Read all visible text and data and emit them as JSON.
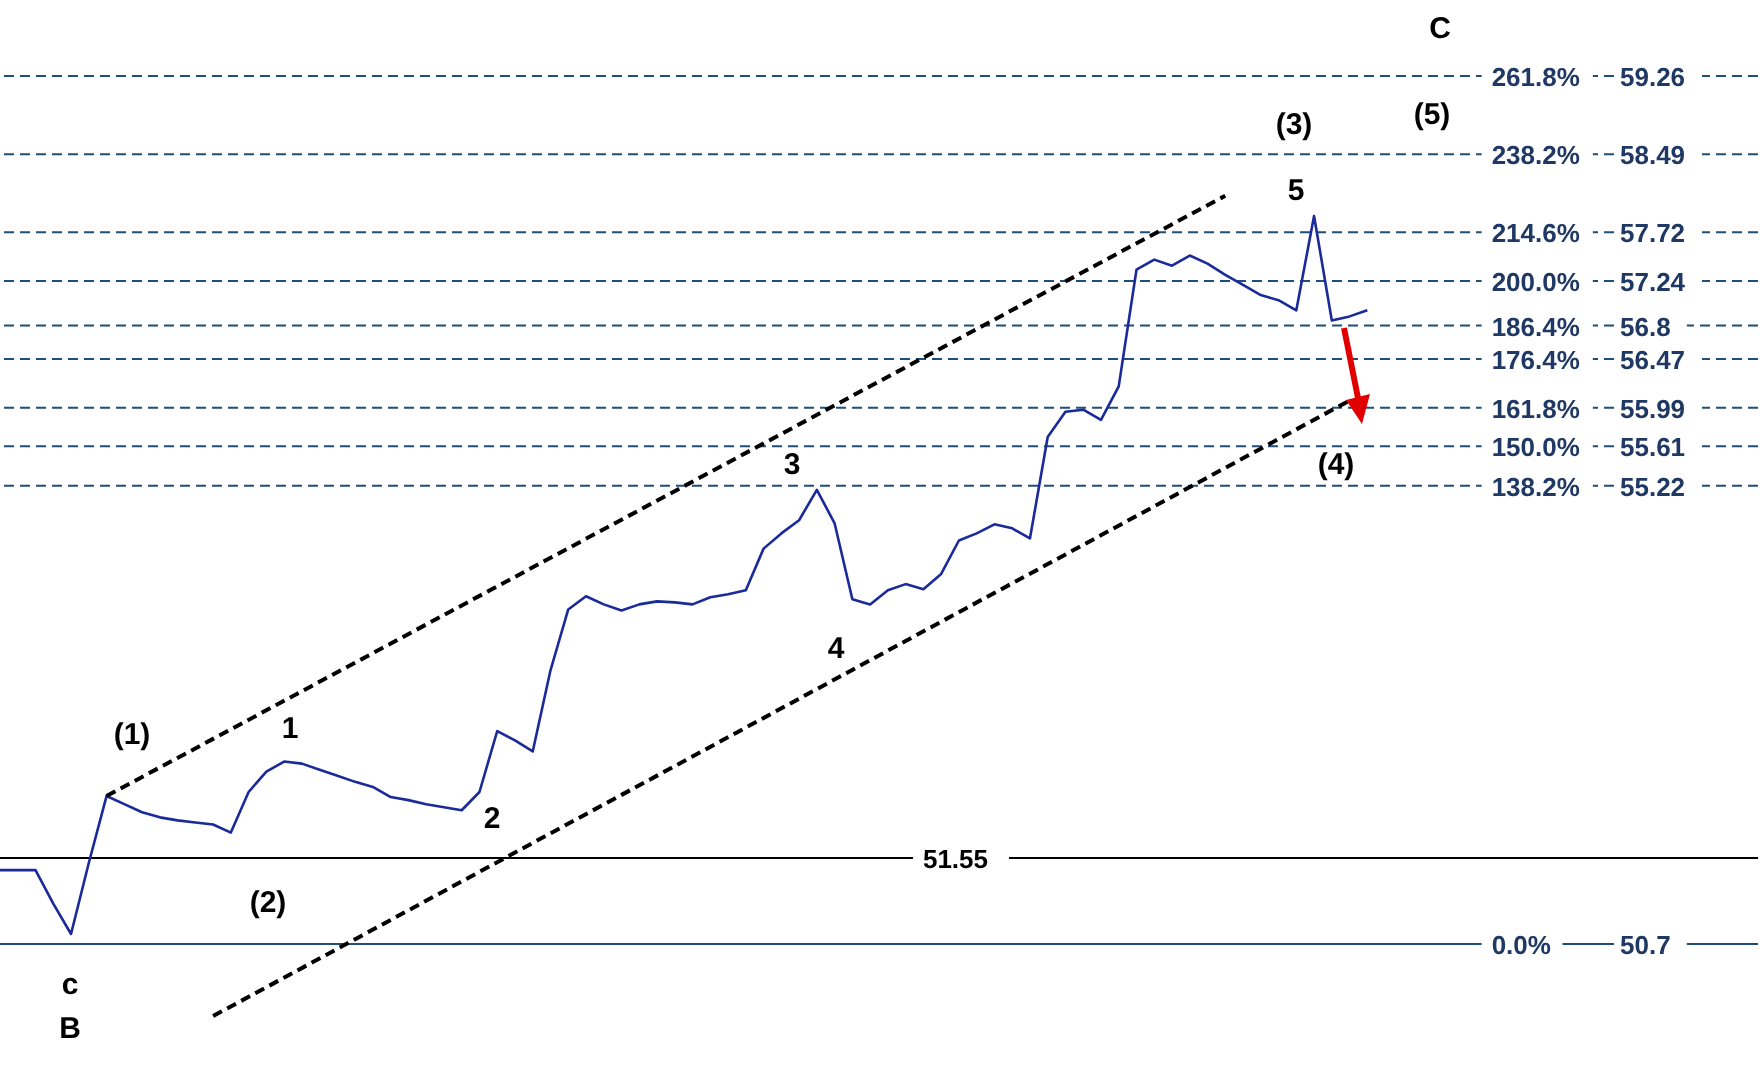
{
  "chart_data": {
    "type": "line",
    "ylim": [
      49.36,
      60.01
    ],
    "tick_labels": "y",
    "marker": "none",
    "categories": [
      null,
      null,
      null,
      null,
      null,
      null,
      null,
      null,
      null,
      null,
      null,
      null,
      null,
      null,
      null,
      null,
      null,
      null,
      null,
      null,
      null,
      null,
      null,
      null,
      null,
      null,
      null,
      null,
      null,
      null,
      null,
      null,
      null,
      null,
      null,
      null,
      null,
      null,
      null,
      null,
      null,
      null,
      null,
      null,
      null,
      null,
      null,
      null,
      null,
      null,
      null,
      null,
      null,
      null,
      null,
      null,
      null,
      null,
      null,
      null,
      null,
      null,
      null,
      null,
      null,
      null,
      null,
      null,
      null,
      null,
      null,
      null,
      null,
      null,
      null,
      null,
      null,
      null,
      null,
      null,
      null,
      null,
      null,
      null,
      null,
      null,
      null,
      null,
      null,
      null,
      null,
      null,
      null,
      null,
      null,
      null,
      null,
      null,
      null,
      null
    ],
    "yticks": [
      59.26,
      58.49,
      57.72,
      57.24,
      56.8,
      56.47,
      55.99,
      55.61,
      55.22,
      50.7
    ],
    "series": [
      {
        "color": "#1a2a9a",
        "values": [
          51.43,
          51.43,
          51.43,
          51.1,
          50.8,
          51.5,
          52.16,
          52.08,
          52.0,
          51.95,
          51.92,
          51.9,
          51.88,
          51.8,
          52.2,
          52.4,
          52.5,
          52.48,
          52.42,
          52.36,
          52.3,
          52.25,
          52.15,
          52.12,
          52.08,
          52.05,
          52.02,
          52.2,
          52.8,
          52.71,
          52.6,
          53.4,
          54.0,
          54.13,
          54.05,
          53.99,
          54.05,
          54.08,
          54.07,
          54.05,
          54.12,
          54.15,
          54.19,
          54.6,
          54.75,
          54.88,
          55.18,
          54.85,
          54.1,
          54.05,
          54.19,
          54.25,
          54.2,
          54.35,
          54.68,
          54.75,
          54.84,
          54.8,
          54.7,
          55.7,
          55.95,
          55.97,
          55.87,
          56.2,
          57.35,
          57.45,
          57.39,
          57.49,
          57.41,
          57.3,
          57.2,
          57.1,
          57.05,
          56.95,
          57.88,
          56.85,
          56.89,
          56.95,
          null,
          null,
          null,
          null,
          null,
          null,
          null,
          null,
          null,
          null,
          null,
          null,
          null,
          null,
          null,
          null,
          null,
          null,
          null,
          null,
          null,
          null
        ]
      },
      {
        "type": "line",
        "color": "#000000",
        "line_style": "dashed",
        "values": [
          null,
          null,
          null,
          null,
          null,
          null,
          52.16,
          null,
          null,
          null,
          null,
          null,
          null,
          null,
          null,
          null,
          null,
          null,
          null,
          null,
          null,
          null,
          null,
          null,
          null,
          null,
          null,
          null,
          null,
          null,
          null,
          null,
          null,
          null,
          null,
          null,
          null,
          null,
          null,
          null,
          null,
          null,
          null,
          null,
          null,
          null,
          null,
          null,
          null,
          null,
          null,
          null,
          null,
          null,
          null,
          null,
          null,
          null,
          null,
          null,
          null,
          null,
          null,
          null,
          null,
          null,
          null,
          null,
          null,
          58.08,
          null,
          null,
          null,
          null,
          null,
          null,
          null,
          null,
          null,
          null,
          null,
          null,
          null,
          null,
          null,
          null,
          null,
          null,
          null,
          null,
          null,
          null,
          null,
          null,
          null,
          null,
          null,
          null,
          null,
          null
        ]
      },
      {
        "type": "line",
        "color": "#000000",
        "line_style": "dashed",
        "values": [
          null,
          null,
          null,
          null,
          null,
          null,
          null,
          null,
          null,
          null,
          null,
          null,
          49.99,
          null,
          null,
          null,
          null,
          null,
          null,
          null,
          null,
          null,
          null,
          null,
          null,
          null,
          null,
          null,
          null,
          null,
          null,
          null,
          null,
          null,
          null,
          null,
          null,
          null,
          null,
          null,
          null,
          null,
          null,
          null,
          null,
          null,
          null,
          null,
          null,
          null,
          null,
          null,
          null,
          null,
          null,
          null,
          null,
          null,
          null,
          null,
          null,
          null,
          null,
          null,
          null,
          null,
          null,
          null,
          null,
          null,
          null,
          null,
          null,
          null,
          null,
          null,
          56.06,
          null,
          null,
          null,
          null,
          null,
          null,
          null,
          null,
          null,
          null,
          null,
          null,
          null,
          null,
          null,
          null,
          null,
          null,
          null,
          null,
          null,
          null,
          null
        ]
      }
    ],
    "ref_lines": [
      {
        "axis": "y",
        "value": 59.26,
        "color": "#1f4e79",
        "line_style": "dashed"
      },
      {
        "axis": "y",
        "value": 58.49,
        "color": "#1f4e79",
        "line_style": "dashed"
      },
      {
        "axis": "y",
        "value": 57.72,
        "color": "#1f4e79",
        "line_style": "dashed"
      },
      {
        "axis": "y",
        "value": 57.24,
        "color": "#1f4e79",
        "line_style": "dashed"
      },
      {
        "axis": "y",
        "value": 56.8,
        "color": "#1f4e79",
        "line_style": "dashed"
      },
      {
        "axis": "y",
        "value": 56.47,
        "color": "#1f4e79",
        "line_style": "dashed"
      },
      {
        "axis": "y",
        "value": 55.99,
        "color": "#1f4e79",
        "line_style": "dashed"
      },
      {
        "axis": "y",
        "value": 55.61,
        "color": "#1f4e79",
        "line_style": "dashed"
      },
      {
        "axis": "y",
        "value": 55.22,
        "color": "#1f4e79",
        "line_style": "dashed"
      },
      {
        "axis": "y",
        "value": 51.55,
        "label": "51.55",
        "color": "#000000",
        "line_style": "solid"
      },
      {
        "axis": "y",
        "value": 50.7,
        "color": "#1f4e79",
        "line_style": "solid"
      }
    ],
    "annotations": [
      "(1)",
      "1",
      "(2)",
      "2",
      "3",
      "4",
      "(3)",
      "5",
      "(4)",
      "(5)",
      "C",
      "c",
      "B",
      {
        "text": "261.8%",
        "y": 59.26
      },
      {
        "text": "238.2%",
        "y": 58.49
      },
      {
        "text": "214.6%",
        "y": 57.72
      },
      {
        "text": "200.0%",
        "y": 57.24
      },
      {
        "text": "186.4%",
        "y": 56.8
      },
      {
        "text": "176.4%",
        "y": 56.47
      },
      {
        "text": "161.8%",
        "y": 55.99
      },
      {
        "text": "150.0%",
        "y": 55.61
      },
      {
        "text": "138.2%",
        "y": 55.22
      },
      {
        "text": "0.0%",
        "y": 50.7
      }
    ]
  }
}
